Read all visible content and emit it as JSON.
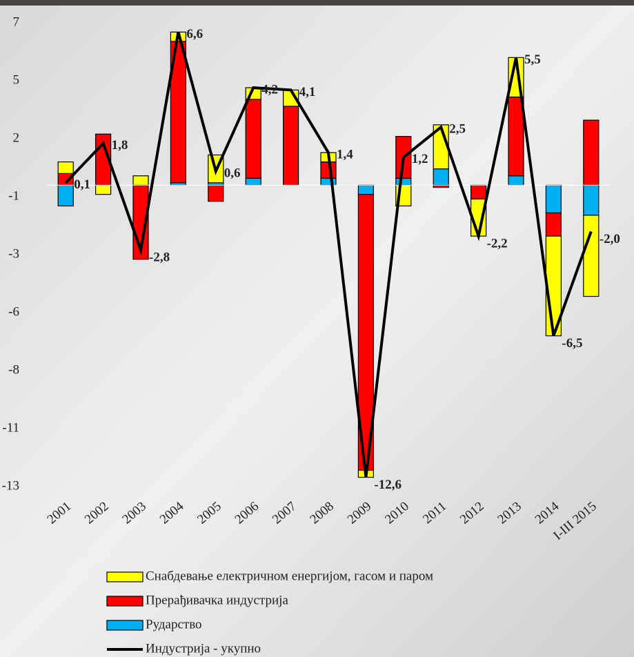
{
  "chart_data": {
    "type": "bar",
    "stacked": true,
    "categories": [
      "2001",
      "2002",
      "2003",
      "2004",
      "2005",
      "2006",
      "2007",
      "2008",
      "2009",
      "2010",
      "2011",
      "2012",
      "2013",
      "2014",
      "I-III 2015"
    ],
    "series": [
      {
        "name": "Снабдевање електричном енергијом, гасом и паром",
        "color": "#ffff00",
        "values": [
          0.5,
          -0.4,
          0.4,
          0.4,
          1.2,
          0.5,
          0.7,
          0.4,
          -0.3,
          -0.9,
          1.9,
          -1.6,
          1.7,
          -4.3,
          -3.5
        ]
      },
      {
        "name": "Прерађивачка индустрија",
        "color": "#ff0000",
        "values": [
          0.5,
          2.2,
          -3.2,
          6.1,
          -0.7,
          3.4,
          3.4,
          0.7,
          -11.9,
          1.8,
          -0.1,
          -0.6,
          3.4,
          -1.0,
          2.8
        ]
      },
      {
        "name": "Рударство",
        "color": "#00b0f0",
        "values": [
          -0.9,
          0,
          0,
          0.1,
          0.1,
          0.3,
          0,
          0.3,
          -0.4,
          0.3,
          0.7,
          0,
          0.4,
          -1.2,
          -1.3
        ]
      },
      {
        "name": "Индустрија - укупно",
        "type": "line",
        "color": "#000000",
        "values": [
          0.1,
          1.8,
          -2.8,
          6.6,
          0.6,
          4.2,
          4.1,
          1.4,
          -12.6,
          1.2,
          2.5,
          -2.2,
          5.5,
          -6.5,
          -2.0
        ],
        "value_labels": [
          "0,1",
          "1,8",
          "-2,8",
          "6,6",
          "0,6",
          "4,2",
          "4,1",
          "1,4",
          "-12,6",
          "1,2",
          "2,5",
          "-2,2",
          "5,5",
          "-6,5",
          "-2,0"
        ]
      }
    ],
    "ylim": [
      -13,
      7
    ],
    "yticks": [
      7,
      {
        "value": 4.5,
        "label": "5"
      },
      2,
      {
        "value": -0.5,
        "label": "-1"
      },
      -3,
      {
        "value": -5.5,
        "label": "-6"
      },
      -8,
      {
        "value": -10.5,
        "label": "-11"
      },
      -13
    ],
    "grid": false
  }
}
